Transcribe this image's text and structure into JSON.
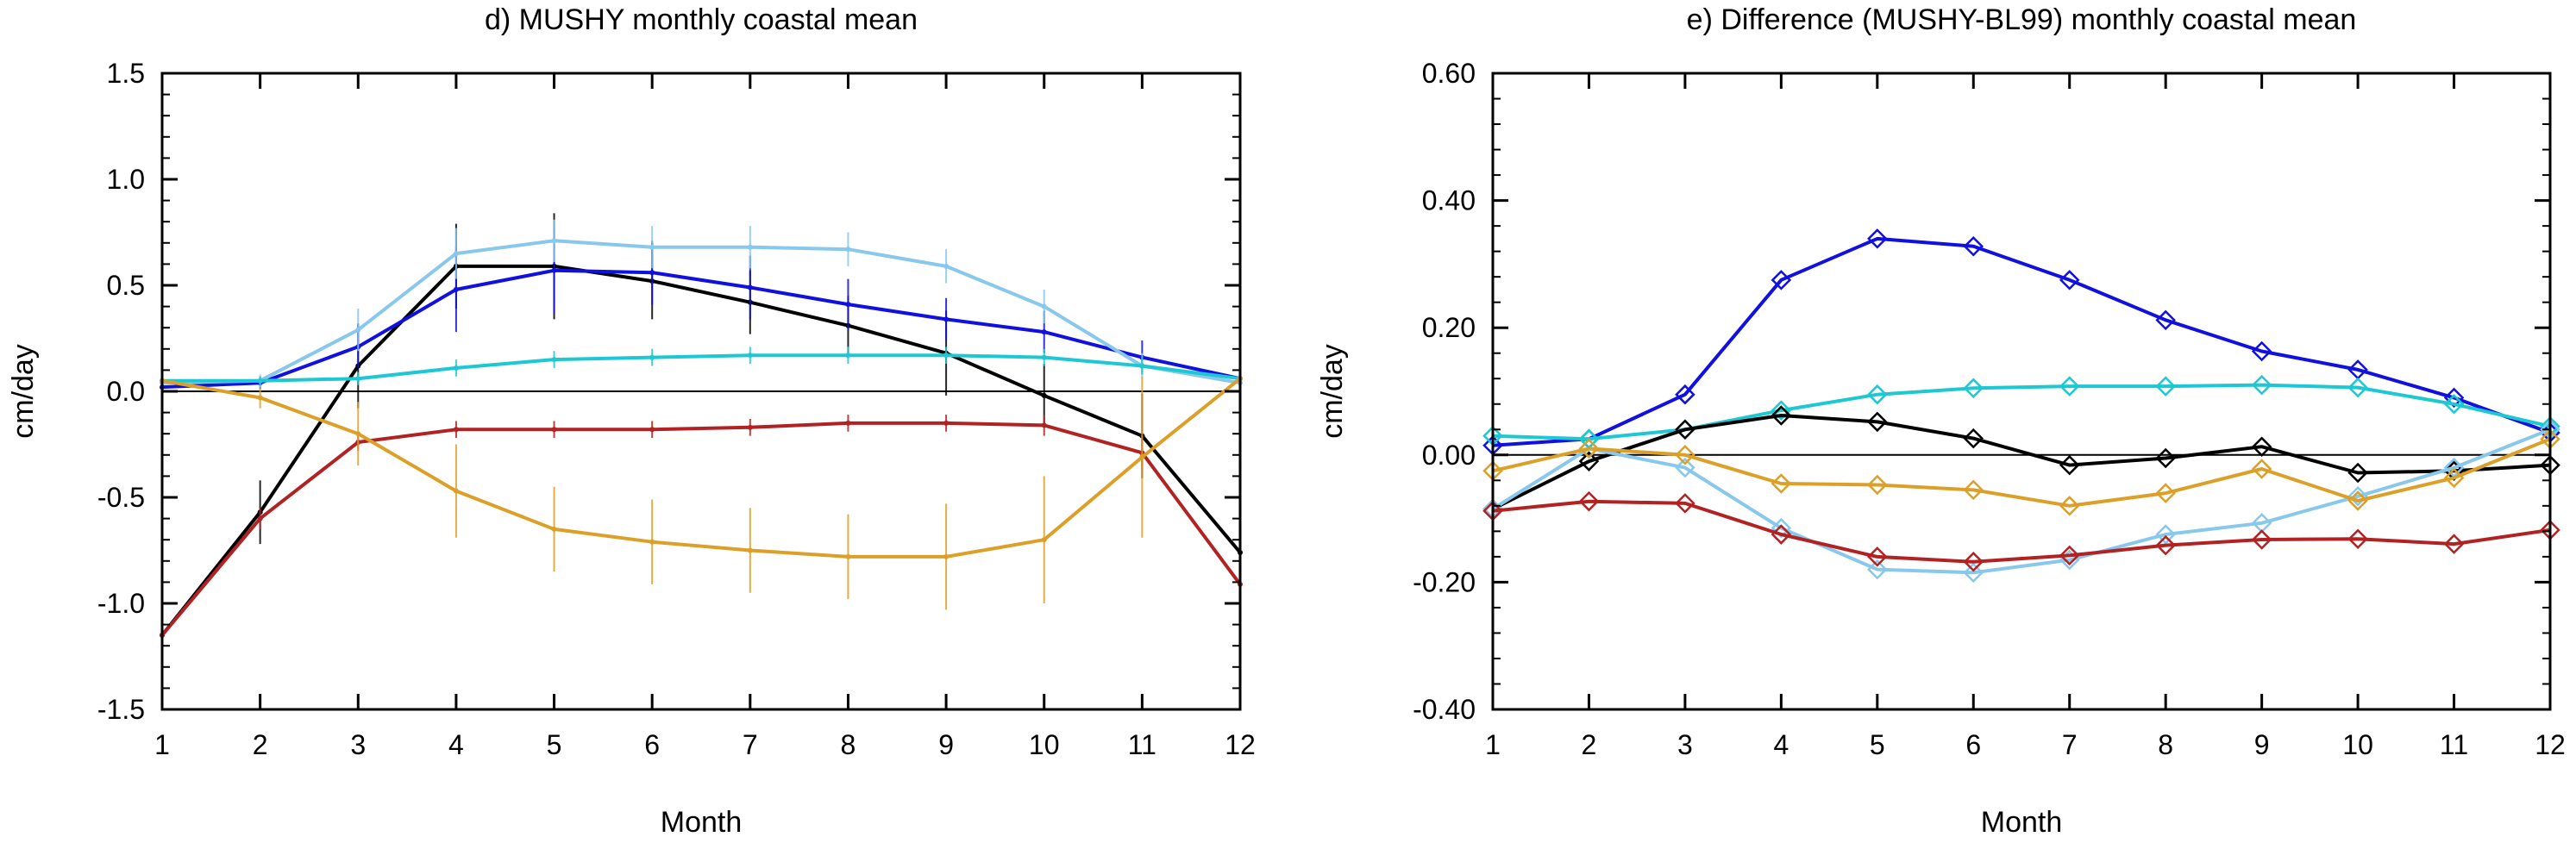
{
  "colors": {
    "black": "#000000",
    "blue": "#1010e0",
    "lightblue": "#87c8ec",
    "cyan": "#1ec8d2",
    "red": "#b22222",
    "orange": "#dca028"
  },
  "chart_data": [
    {
      "type": "line",
      "title": "d) MUSHY monthly coastal mean",
      "xlabel": "Month",
      "ylabel": "cm/day",
      "x": [
        1,
        2,
        3,
        4,
        5,
        6,
        7,
        8,
        9,
        10,
        11,
        12
      ],
      "xticklabels": [
        "1",
        "2",
        "3",
        "4",
        "5",
        "6",
        "7",
        "8",
        "9",
        "10",
        "11",
        "12"
      ],
      "ylim": [
        -1.5,
        1.5
      ],
      "yticks": [
        -1.5,
        -1.0,
        -0.5,
        0.0,
        0.5,
        1.0,
        1.5
      ],
      "yticklabels": [
        "-1.5",
        "-1.0",
        "-0.5",
        "0.0",
        "0.5",
        "1.0",
        "1.5"
      ],
      "zero_line": true,
      "error_bars": true,
      "series": [
        {
          "color": "black",
          "values": [
            -1.15,
            -0.57,
            0.12,
            0.59,
            0.59,
            0.52,
            0.42,
            0.31,
            0.18,
            -0.02,
            -0.21,
            -0.76
          ],
          "err": [
            0,
            0.15,
            0.2,
            0.2,
            0.25,
            0.18,
            0.15,
            0.14,
            0.2,
            0.15,
            0.2,
            0
          ]
        },
        {
          "color": "blue",
          "values": [
            0.02,
            0.04,
            0.21,
            0.48,
            0.57,
            0.56,
            0.49,
            0.41,
            0.34,
            0.28,
            0.16,
            0.06
          ],
          "err": [
            0,
            0.03,
            0.1,
            0.2,
            0.2,
            0.15,
            0.15,
            0.12,
            0.1,
            0.1,
            0.08,
            0
          ]
        },
        {
          "color": "lightblue",
          "values": [
            0.04,
            0.05,
            0.29,
            0.65,
            0.71,
            0.68,
            0.68,
            0.67,
            0.59,
            0.4,
            0.12,
            0.04
          ],
          "err": [
            0,
            0.03,
            0.1,
            0.12,
            0.1,
            0.1,
            0.1,
            0.08,
            0.08,
            0.08,
            0.06,
            0
          ]
        },
        {
          "color": "cyan",
          "values": [
            0.05,
            0.05,
            0.06,
            0.11,
            0.15,
            0.16,
            0.17,
            0.17,
            0.17,
            0.16,
            0.12,
            0.06
          ],
          "err": [
            0,
            0.02,
            0.03,
            0.04,
            0.04,
            0.04,
            0.04,
            0.04,
            0.04,
            0.04,
            0.04,
            0
          ]
        },
        {
          "color": "red",
          "values": [
            -1.15,
            -0.6,
            -0.24,
            -0.18,
            -0.18,
            -0.18,
            -0.17,
            -0.15,
            -0.15,
            -0.16,
            -0.29,
            -0.91
          ],
          "err": [
            0,
            0.05,
            0.04,
            0.04,
            0.04,
            0.04,
            0.04,
            0.04,
            0.04,
            0.05,
            0.08,
            0
          ]
        },
        {
          "color": "orange",
          "values": [
            0.05,
            -0.03,
            -0.2,
            -0.47,
            -0.65,
            -0.71,
            -0.75,
            -0.78,
            -0.78,
            -0.7,
            -0.31,
            0.06
          ],
          "err": [
            0,
            0.05,
            0.15,
            0.22,
            0.2,
            0.2,
            0.2,
            0.2,
            0.25,
            0.3,
            0.38,
            0
          ]
        }
      ]
    },
    {
      "type": "line",
      "title": "e) Difference (MUSHY-BL99) monthly coastal mean",
      "xlabel": "Month",
      "ylabel": "cm/day",
      "x": [
        1,
        2,
        3,
        4,
        5,
        6,
        7,
        8,
        9,
        10,
        11,
        12
      ],
      "xticklabels": [
        "1",
        "2",
        "3",
        "4",
        "5",
        "6",
        "7",
        "8",
        "9",
        "10",
        "11",
        "12"
      ],
      "ylim": [
        -0.4,
        0.6
      ],
      "yticks": [
        -0.4,
        -0.2,
        0.0,
        0.2,
        0.4,
        0.6
      ],
      "yticklabels": [
        "-0.40",
        "-0.20",
        "0.00",
        "0.20",
        "0.40",
        "0.60"
      ],
      "zero_line": true,
      "markers": "diamond",
      "series": [
        {
          "color": "blue",
          "values": [
            0.015,
            0.025,
            0.095,
            0.275,
            0.34,
            0.328,
            0.275,
            0.212,
            0.163,
            0.134,
            0.09,
            0.035
          ]
        },
        {
          "color": "cyan",
          "values": [
            0.03,
            0.025,
            0.04,
            0.07,
            0.095,
            0.105,
            0.108,
            0.108,
            0.11,
            0.106,
            0.08,
            0.045
          ]
        },
        {
          "color": "black",
          "values": [
            -0.085,
            -0.01,
            0.04,
            0.062,
            0.052,
            0.026,
            -0.016,
            -0.005,
            0.013,
            -0.028,
            -0.025,
            -0.016
          ]
        },
        {
          "color": "lightblue",
          "values": [
            -0.085,
            0.01,
            -0.02,
            -0.115,
            -0.18,
            -0.185,
            -0.165,
            -0.125,
            -0.107,
            -0.065,
            -0.02,
            0.04
          ]
        },
        {
          "color": "orange",
          "values": [
            -0.025,
            0.01,
            0.0,
            -0.045,
            -0.047,
            -0.055,
            -0.08,
            -0.06,
            -0.022,
            -0.072,
            -0.036,
            0.025
          ]
        },
        {
          "color": "red",
          "values": [
            -0.088,
            -0.073,
            -0.076,
            -0.125,
            -0.16,
            -0.168,
            -0.158,
            -0.142,
            -0.133,
            -0.132,
            -0.14,
            -0.118
          ]
        }
      ]
    }
  ]
}
